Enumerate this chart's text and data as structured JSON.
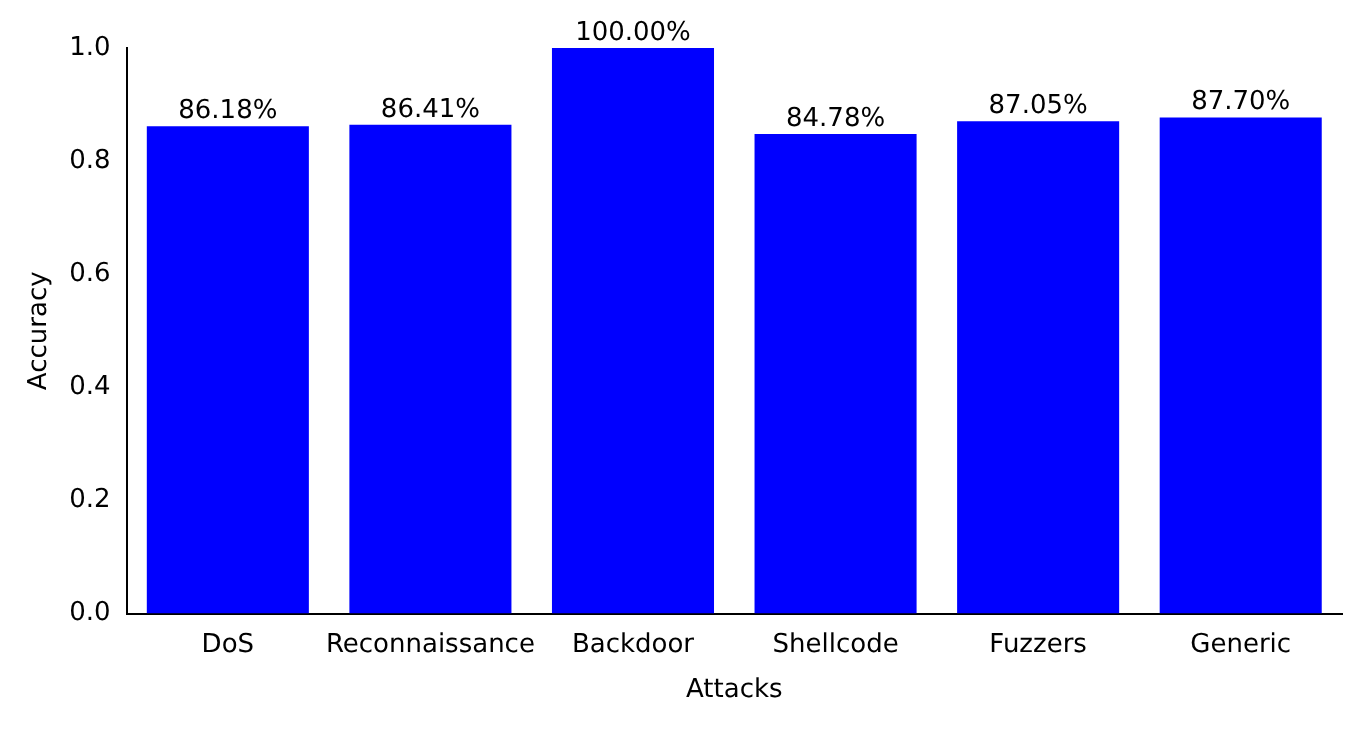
{
  "chart_data": {
    "type": "bar",
    "xlabel": "Attacks",
    "ylabel": "Accuracy",
    "categories": [
      "DoS",
      "Reconnaissance",
      "Backdoor",
      "Shellcode",
      "Fuzzers",
      "Generic"
    ],
    "values": [
      0.8618,
      0.8641,
      1.0,
      0.8478,
      0.8705,
      0.877
    ],
    "value_labels": [
      "86.18%",
      "86.41%",
      "100.00%",
      "84.78%",
      "87.05%",
      "87.70%"
    ],
    "color": "#0000ff",
    "ylim": [
      0,
      1
    ],
    "yticks": [
      {
        "value": 0,
        "label": "0.0"
      },
      0.2,
      0.4,
      0.6,
      0.8,
      {
        "value": 1,
        "label": "1.0"
      }
    ],
    "grid": false,
    "legend": false
  }
}
